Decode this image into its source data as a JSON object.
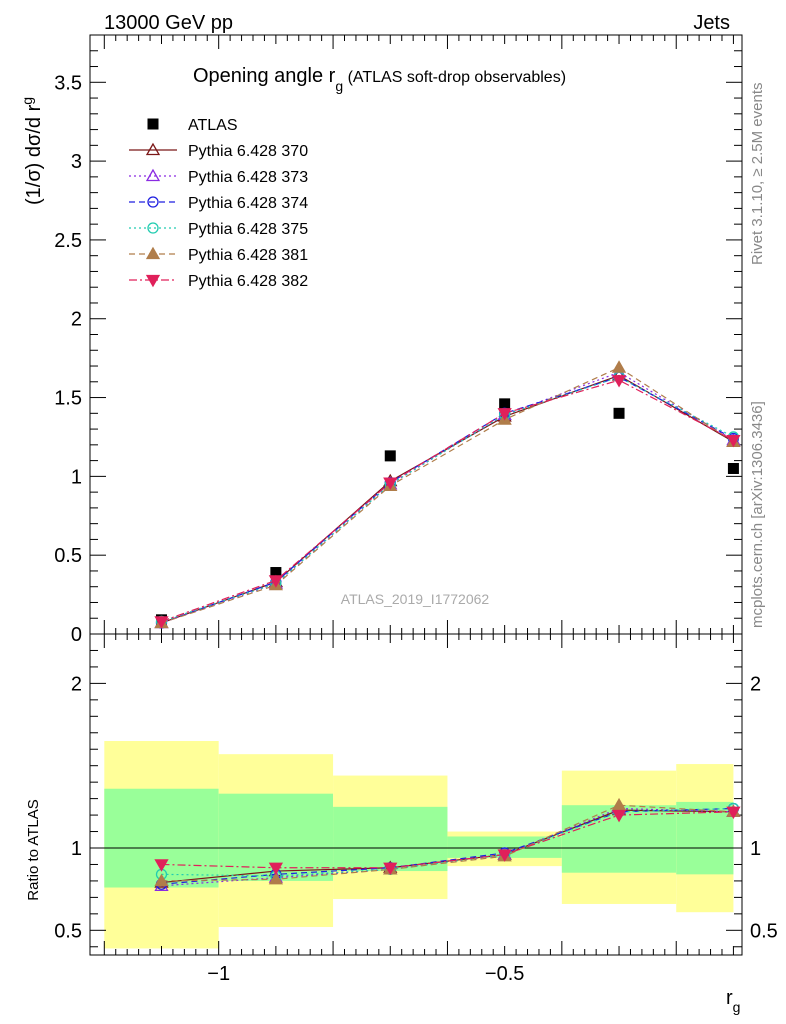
{
  "header": {
    "energy_label": "13000 GeV pp",
    "process_label": "Jets",
    "side_rivet": "Rivet 3.1.10, ≥ 2.5M events",
    "side_mcplots": "mcplots.cern.ch [arXiv:1306.3436]"
  },
  "main": {
    "title": "Opening angle r",
    "title_sub": "g",
    "title_rest": " (ATLAS soft-drop observables)",
    "ylabel": "(1/σ) dσ/d r",
    "ylabel_sub": "g",
    "watermark": "ATLAS_2019_I1772062"
  },
  "ratio": {
    "ylabel": "Ratio to ATLAS"
  },
  "xaxis": {
    "label": "r",
    "label_sub": "g"
  },
  "colors": {
    "yellow_band": "#ffff99",
    "green_band": "#99ff99"
  },
  "chart_data": [
    {
      "type": "line",
      "panel": "main",
      "xlim": [
        -1.225,
        -0.085
      ],
      "ylim": [
        0,
        3.8
      ],
      "yticks": [
        0,
        0.5,
        1,
        1.5,
        2,
        2.5,
        3,
        3.5
      ],
      "ytick_labels": [
        "0",
        "0.5",
        "1",
        "1.5",
        "2",
        "2.5",
        "3",
        "3.5"
      ],
      "x": [
        -1.1,
        -0.9,
        -0.7,
        -0.5,
        -0.3,
        -0.1
      ],
      "legend_position": "top-left",
      "series": [
        {
          "name": "ATLAS",
          "marker": "square",
          "color": "#000000",
          "line": "none",
          "values": [
            0.09,
            0.39,
            1.13,
            1.46,
            1.4,
            1.05
          ]
        },
        {
          "name": "Pythia 6.428 370",
          "marker": "triangle-open",
          "color": "#7b1717",
          "line": "solid",
          "values": [
            0.07,
            0.33,
            0.97,
            1.38,
            1.64,
            1.22
          ]
        },
        {
          "name": "Pythia 6.428 373",
          "marker": "triangle-open",
          "color": "#8a2be2",
          "line": "dotted",
          "values": [
            0.07,
            0.32,
            0.95,
            1.39,
            1.66,
            1.23
          ]
        },
        {
          "name": "Pythia 6.428 374",
          "marker": "circle-open",
          "color": "#1f1fe0",
          "line": "dashed",
          "values": [
            0.07,
            0.33,
            0.96,
            1.4,
            1.63,
            1.24
          ]
        },
        {
          "name": "Pythia 6.428 375",
          "marker": "circle-open",
          "color": "#22ccb0",
          "line": "dotted",
          "values": [
            0.08,
            0.32,
            0.95,
            1.39,
            1.63,
            1.25
          ]
        },
        {
          "name": "Pythia 6.428 381",
          "marker": "triangle-filled",
          "color": "#b07d4a",
          "line": "dashed",
          "values": [
            0.07,
            0.31,
            0.94,
            1.36,
            1.69,
            1.22
          ]
        },
        {
          "name": "Pythia 6.428 382",
          "marker": "triangle-down-filled",
          "color": "#e0205a",
          "line": "dashdot",
          "values": [
            0.08,
            0.34,
            0.96,
            1.4,
            1.61,
            1.23
          ]
        }
      ]
    },
    {
      "type": "line",
      "panel": "ratio",
      "xlim": [
        -1.225,
        -0.085
      ],
      "ylim": [
        0.35,
        2.3
      ],
      "xticks": [
        -1,
        -0.5
      ],
      "xtick_labels": [
        "−1",
        "−0.5"
      ],
      "yticks": [
        0.5,
        1,
        2
      ],
      "ytick_labels": [
        "0.5",
        "1",
        "2"
      ],
      "reference_line": 1,
      "bins": [
        [
          -1.2,
          -1.0
        ],
        [
          -1.0,
          -0.8
        ],
        [
          -0.8,
          -0.6
        ],
        [
          -0.6,
          -0.4
        ],
        [
          -0.4,
          -0.2
        ],
        [
          -0.2,
          -0.1
        ]
      ],
      "yellow_band": [
        [
          0.39,
          1.65
        ],
        [
          0.52,
          1.57
        ],
        [
          0.69,
          1.44
        ],
        [
          0.89,
          1.1
        ],
        [
          0.66,
          1.47
        ],
        [
          0.61,
          1.51
        ]
      ],
      "green_band": [
        [
          0.76,
          1.36
        ],
        [
          0.8,
          1.33
        ],
        [
          0.86,
          1.25
        ],
        [
          0.94,
          1.07
        ],
        [
          0.85,
          1.26
        ],
        [
          0.84,
          1.28
        ]
      ],
      "x": [
        -1.1,
        -0.9,
        -0.7,
        -0.5,
        -0.3,
        -0.1
      ],
      "series": [
        {
          "name": "Pythia 6.428 370",
          "marker": "triangle-open",
          "color": "#7b1717",
          "line": "solid",
          "values": [
            0.79,
            0.86,
            0.88,
            0.96,
            1.23,
            1.22
          ]
        },
        {
          "name": "Pythia 6.428 373",
          "marker": "triangle-open",
          "color": "#8a2be2",
          "line": "dotted",
          "values": [
            0.77,
            0.82,
            0.87,
            0.96,
            1.24,
            1.22
          ]
        },
        {
          "name": "Pythia 6.428 374",
          "marker": "circle-open",
          "color": "#1f1fe0",
          "line": "dashed",
          "values": [
            0.78,
            0.84,
            0.88,
            0.97,
            1.22,
            1.24
          ]
        },
        {
          "name": "Pythia 6.428 375",
          "marker": "circle-open",
          "color": "#22ccb0",
          "line": "dotted",
          "values": [
            0.84,
            0.83,
            0.87,
            0.96,
            1.22,
            1.24
          ]
        },
        {
          "name": "Pythia 6.428 381",
          "marker": "triangle-filled",
          "color": "#b07d4a",
          "line": "dashed",
          "values": [
            0.8,
            0.81,
            0.87,
            0.95,
            1.26,
            1.22
          ]
        },
        {
          "name": "Pythia 6.428 382",
          "marker": "triangle-down-filled",
          "color": "#e0205a",
          "line": "dashdot",
          "values": [
            0.9,
            0.88,
            0.88,
            0.96,
            1.2,
            1.22
          ]
        }
      ]
    }
  ]
}
